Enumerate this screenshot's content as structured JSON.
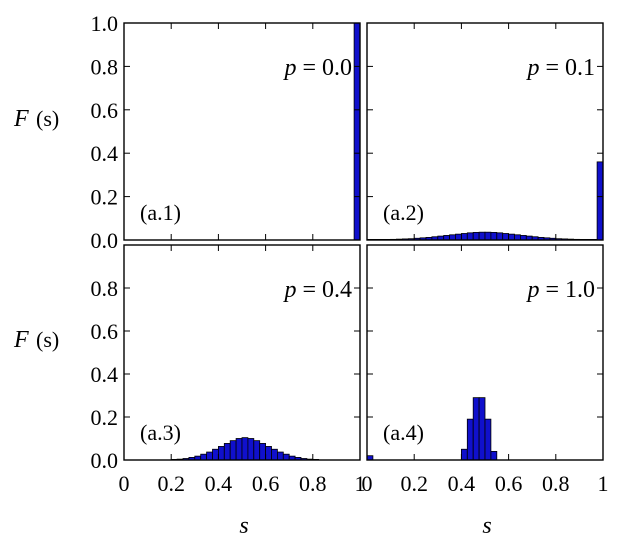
{
  "chart_data": {
    "type": "bar",
    "layout": "2x2 grid, shared axes",
    "xlabel": "s",
    "ylabel": "F (s)",
    "ylabel_parts": {
      "prefix": "F",
      "arg": "(s)"
    },
    "xlim": [
      0,
      1
    ],
    "ylim": [
      0,
      1.0
    ],
    "x_ticks": [
      "0",
      "0.2",
      "0.4",
      "0.6",
      "0.8",
      "1"
    ],
    "y_ticks": [
      "0.0",
      "0.2",
      "0.4",
      "0.6",
      "0.8",
      "1.0"
    ],
    "bin_width": 0.025,
    "bar_color": "#1010cc",
    "panels": [
      {
        "label": "(a.1)",
        "annotation": "p = 0.0",
        "bins": [],
        "spike": {
          "x": 0.9875,
          "value": 1.0
        }
      },
      {
        "label": "(a.2)",
        "annotation": "p = 0.1",
        "bins": [
          [
            0.0125,
            0.001
          ],
          [
            0.0375,
            0.001
          ],
          [
            0.0625,
            0.002
          ],
          [
            0.0875,
            0.002
          ],
          [
            0.1125,
            0.003
          ],
          [
            0.1375,
            0.004
          ],
          [
            0.1625,
            0.005
          ],
          [
            0.1875,
            0.006
          ],
          [
            0.2125,
            0.008
          ],
          [
            0.2375,
            0.01
          ],
          [
            0.2625,
            0.012
          ],
          [
            0.2875,
            0.015
          ],
          [
            0.3125,
            0.018
          ],
          [
            0.3375,
            0.021
          ],
          [
            0.3625,
            0.024
          ],
          [
            0.3875,
            0.027
          ],
          [
            0.4125,
            0.03
          ],
          [
            0.4375,
            0.033
          ],
          [
            0.4625,
            0.035
          ],
          [
            0.4875,
            0.036
          ],
          [
            0.5125,
            0.036
          ],
          [
            0.5375,
            0.035
          ],
          [
            0.5625,
            0.033
          ],
          [
            0.5875,
            0.03
          ],
          [
            0.6125,
            0.027
          ],
          [
            0.6375,
            0.024
          ],
          [
            0.6625,
            0.021
          ],
          [
            0.6875,
            0.018
          ],
          [
            0.7125,
            0.015
          ],
          [
            0.7375,
            0.012
          ],
          [
            0.7625,
            0.01
          ],
          [
            0.7875,
            0.008
          ],
          [
            0.8125,
            0.006
          ],
          [
            0.8375,
            0.005
          ],
          [
            0.8625,
            0.004
          ],
          [
            0.8875,
            0.003
          ],
          [
            0.9125,
            0.002
          ],
          [
            0.9375,
            0.002
          ],
          [
            0.9625,
            0.001
          ]
        ],
        "spike": {
          "x": 0.9875,
          "value": 0.36
        }
      },
      {
        "label": "(a.3)",
        "annotation": "p = 0.4",
        "bins": [
          [
            0.2125,
            0.002
          ],
          [
            0.2375,
            0.004
          ],
          [
            0.2625,
            0.007
          ],
          [
            0.2875,
            0.012
          ],
          [
            0.3125,
            0.018
          ],
          [
            0.3375,
            0.027
          ],
          [
            0.3625,
            0.037
          ],
          [
            0.3875,
            0.05
          ],
          [
            0.4125,
            0.063
          ],
          [
            0.4375,
            0.077
          ],
          [
            0.4625,
            0.09
          ],
          [
            0.4875,
            0.1
          ],
          [
            0.5125,
            0.104
          ],
          [
            0.5375,
            0.1
          ],
          [
            0.5625,
            0.09
          ],
          [
            0.5875,
            0.077
          ],
          [
            0.6125,
            0.063
          ],
          [
            0.6375,
            0.05
          ],
          [
            0.6625,
            0.037
          ],
          [
            0.6875,
            0.027
          ],
          [
            0.7125,
            0.018
          ],
          [
            0.7375,
            0.012
          ],
          [
            0.7625,
            0.007
          ],
          [
            0.7875,
            0.004
          ],
          [
            0.8125,
            0.002
          ]
        ],
        "spike": null
      },
      {
        "label": "(a.4)",
        "annotation": "p = 1.0",
        "bins": [
          [
            0.4125,
            0.05
          ],
          [
            0.4375,
            0.19
          ],
          [
            0.4625,
            0.29
          ],
          [
            0.4875,
            0.29
          ],
          [
            0.5125,
            0.19
          ],
          [
            0.5375,
            0.04
          ]
        ],
        "spike": {
          "x": 0.0125,
          "value": 0.02
        }
      }
    ]
  }
}
